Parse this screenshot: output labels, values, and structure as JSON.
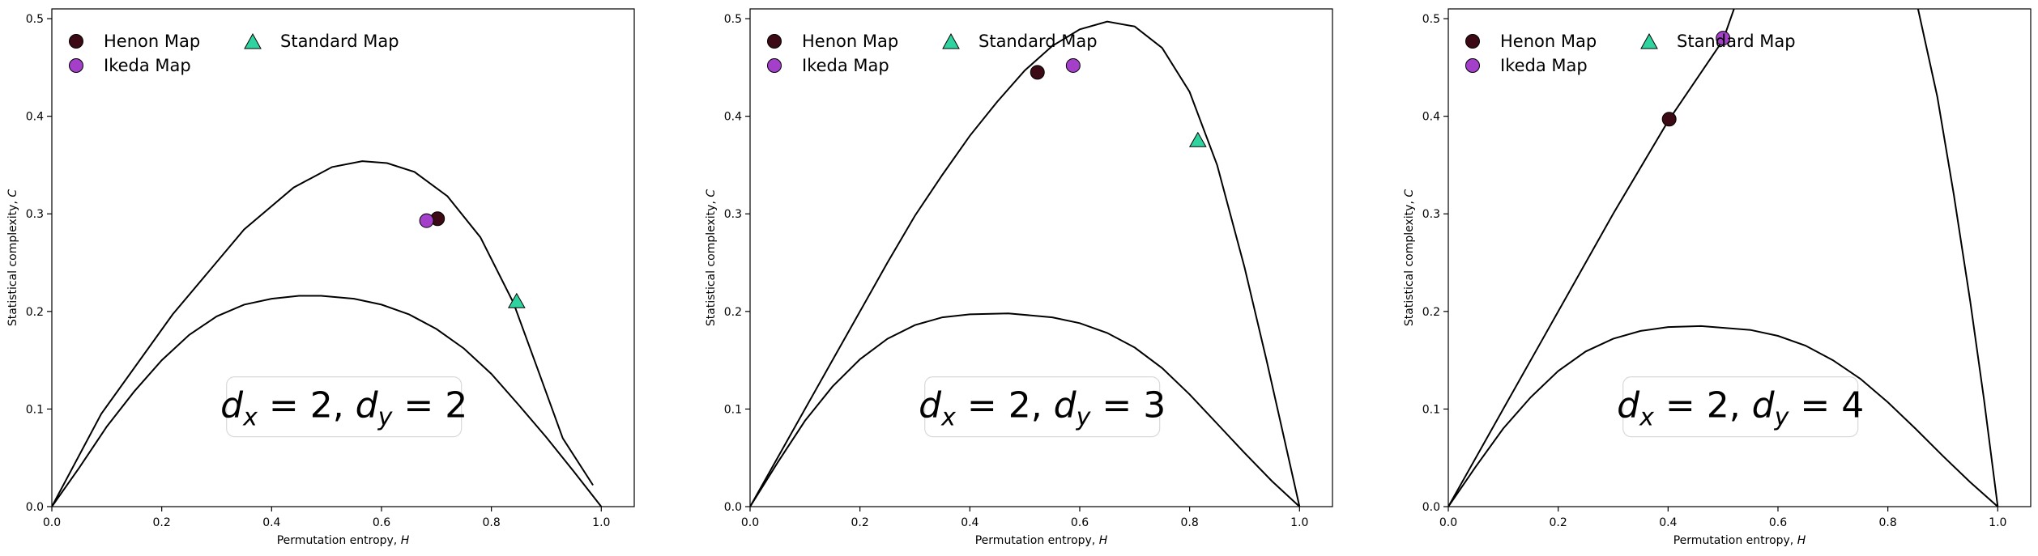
{
  "colors": {
    "henon": "#3b0a14",
    "ikeda": "#a33fc9",
    "standard": "#2fd3a0",
    "curve": "#000000"
  },
  "chart_data": [
    {
      "type": "scatter",
      "xlabel": "Permutation entropy, ",
      "xlabel_var": "H",
      "ylabel": "Statistical complexity, ",
      "ylabel_var": "C",
      "xlim": [
        0.0,
        1.06
      ],
      "ylim": [
        0.0,
        0.51
      ],
      "xticks": [
        "0.0",
        "0.2",
        "0.4",
        "0.6",
        "0.8",
        "1.0"
      ],
      "yticks": [
        "0.0",
        "0.1",
        "0.2",
        "0.3",
        "0.4",
        "0.5"
      ],
      "legend": "upper-left",
      "annotation": {
        "prefix": "d",
        "sub1": "x",
        "mid": " = 2, ",
        "sub2": "y",
        "suffix": " = 2"
      },
      "series": [
        {
          "name": "Henon Map",
          "marker": "circle",
          "points": [
            [
              0.702,
              0.295
            ]
          ]
        },
        {
          "name": "Ikeda Map",
          "marker": "circle",
          "points": [
            [
              0.682,
              0.293
            ]
          ]
        },
        {
          "name": "Standard Map",
          "marker": "triangle",
          "points": [
            [
              0.846,
              0.21
            ]
          ]
        }
      ],
      "upper_curve": [
        [
          0.0,
          0.0
        ],
        [
          0.09,
          0.095
        ],
        [
          0.22,
          0.197
        ],
        [
          0.35,
          0.284
        ],
        [
          0.44,
          0.327
        ],
        [
          0.51,
          0.348
        ],
        [
          0.565,
          0.354
        ],
        [
          0.61,
          0.352
        ],
        [
          0.66,
          0.343
        ],
        [
          0.72,
          0.318
        ],
        [
          0.78,
          0.276
        ],
        [
          0.84,
          0.209
        ],
        [
          0.89,
          0.132
        ],
        [
          0.93,
          0.07
        ],
        [
          0.985,
          0.022
        ]
      ],
      "lower_curve": [
        [
          0.0,
          0.0
        ],
        [
          0.05,
          0.04
        ],
        [
          0.1,
          0.082
        ],
        [
          0.15,
          0.118
        ],
        [
          0.2,
          0.15
        ],
        [
          0.25,
          0.176
        ],
        [
          0.3,
          0.195
        ],
        [
          0.35,
          0.207
        ],
        [
          0.4,
          0.213
        ],
        [
          0.45,
          0.216
        ],
        [
          0.49,
          0.216
        ],
        [
          0.55,
          0.213
        ],
        [
          0.6,
          0.207
        ],
        [
          0.65,
          0.197
        ],
        [
          0.7,
          0.182
        ],
        [
          0.75,
          0.162
        ],
        [
          0.8,
          0.136
        ],
        [
          0.85,
          0.104
        ],
        [
          0.9,
          0.071
        ],
        [
          0.95,
          0.036
        ],
        [
          1.0,
          0.0
        ]
      ]
    },
    {
      "type": "scatter",
      "xlabel": "Permutation entropy, ",
      "xlabel_var": "H",
      "ylabel": "Statistical complexity, ",
      "ylabel_var": "C",
      "xlim": [
        0.0,
        1.06
      ],
      "ylim": [
        0.0,
        0.51
      ],
      "xticks": [
        "0.0",
        "0.2",
        "0.4",
        "0.6",
        "0.8",
        "1.0"
      ],
      "yticks": [
        "0.0",
        "0.1",
        "0.2",
        "0.3",
        "0.4",
        "0.5"
      ],
      "legend": "upper-left",
      "annotation": {
        "prefix": "d",
        "sub1": "x",
        "mid": " = 2, ",
        "sub2": "y",
        "suffix": " = 3"
      },
      "series": [
        {
          "name": "Henon Map",
          "marker": "circle",
          "points": [
            [
              0.523,
              0.445
            ]
          ]
        },
        {
          "name": "Ikeda Map",
          "marker": "circle",
          "points": [
            [
              0.588,
              0.452
            ]
          ]
        },
        {
          "name": "Standard Map",
          "marker": "triangle",
          "points": [
            [
              0.815,
              0.375
            ]
          ]
        }
      ],
      "upper_curve": [
        [
          0.0,
          0.0
        ],
        [
          0.05,
          0.05
        ],
        [
          0.1,
          0.1
        ],
        [
          0.15,
          0.15
        ],
        [
          0.2,
          0.2
        ],
        [
          0.25,
          0.25
        ],
        [
          0.3,
          0.298
        ],
        [
          0.35,
          0.34
        ],
        [
          0.4,
          0.38
        ],
        [
          0.45,
          0.415
        ],
        [
          0.5,
          0.447
        ],
        [
          0.55,
          0.472
        ],
        [
          0.6,
          0.489
        ],
        [
          0.65,
          0.497
        ],
        [
          0.7,
          0.492
        ],
        [
          0.75,
          0.47
        ],
        [
          0.8,
          0.425
        ],
        [
          0.85,
          0.35
        ],
        [
          0.9,
          0.245
        ],
        [
          0.94,
          0.15
        ],
        [
          0.97,
          0.075
        ],
        [
          1.0,
          0.0
        ]
      ],
      "lower_curve": [
        [
          0.0,
          0.0
        ],
        [
          0.05,
          0.045
        ],
        [
          0.1,
          0.088
        ],
        [
          0.15,
          0.123
        ],
        [
          0.2,
          0.151
        ],
        [
          0.25,
          0.172
        ],
        [
          0.3,
          0.186
        ],
        [
          0.35,
          0.194
        ],
        [
          0.4,
          0.197
        ],
        [
          0.47,
          0.198
        ],
        [
          0.55,
          0.194
        ],
        [
          0.6,
          0.188
        ],
        [
          0.65,
          0.178
        ],
        [
          0.7,
          0.163
        ],
        [
          0.75,
          0.142
        ],
        [
          0.8,
          0.115
        ],
        [
          0.85,
          0.085
        ],
        [
          0.9,
          0.055
        ],
        [
          0.95,
          0.026
        ],
        [
          1.0,
          0.0
        ]
      ]
    },
    {
      "type": "scatter",
      "xlabel": "Permutation entropy, ",
      "xlabel_var": "H",
      "ylabel": "Statistical complexity, ",
      "ylabel_var": "C",
      "xlim": [
        0.0,
        1.06
      ],
      "ylim": [
        0.0,
        0.51
      ],
      "xticks": [
        "0.0",
        "0.2",
        "0.4",
        "0.6",
        "0.8",
        "1.0"
      ],
      "yticks": [
        "0.0",
        "0.1",
        "0.2",
        "0.3",
        "0.4",
        "0.5"
      ],
      "legend": "upper-left",
      "annotation": {
        "prefix": "d",
        "sub1": "x",
        "mid": " = 2, ",
        "sub2": "y",
        "suffix": " = 4"
      },
      "series": [
        {
          "name": "Henon Map",
          "marker": "circle",
          "points": [
            [
              0.402,
              0.397
            ]
          ]
        },
        {
          "name": "Ikeda Map",
          "marker": "circle",
          "points": [
            [
              0.5,
              0.48
            ]
          ]
        },
        {
          "name": "Standard Map",
          "marker": "triangle",
          "points": []
        }
      ],
      "upper_curve": [
        [
          0.0,
          0.0
        ],
        [
          0.1,
          0.1
        ],
        [
          0.2,
          0.2
        ],
        [
          0.3,
          0.3
        ],
        [
          0.4,
          0.395
        ],
        [
          0.5,
          0.478
        ],
        [
          0.52,
          0.51
        ]
      ],
      "upper_curve_2": [
        [
          0.855,
          0.51
        ],
        [
          0.89,
          0.42
        ],
        [
          0.92,
          0.32
        ],
        [
          0.95,
          0.21
        ],
        [
          0.975,
          0.11
        ],
        [
          1.0,
          0.0
        ]
      ],
      "lower_curve": [
        [
          0.0,
          0.0
        ],
        [
          0.05,
          0.041
        ],
        [
          0.1,
          0.08
        ],
        [
          0.15,
          0.112
        ],
        [
          0.2,
          0.139
        ],
        [
          0.25,
          0.159
        ],
        [
          0.3,
          0.172
        ],
        [
          0.35,
          0.18
        ],
        [
          0.4,
          0.184
        ],
        [
          0.46,
          0.185
        ],
        [
          0.55,
          0.181
        ],
        [
          0.6,
          0.175
        ],
        [
          0.65,
          0.165
        ],
        [
          0.7,
          0.15
        ],
        [
          0.75,
          0.131
        ],
        [
          0.8,
          0.107
        ],
        [
          0.85,
          0.08
        ],
        [
          0.9,
          0.052
        ],
        [
          0.95,
          0.025
        ],
        [
          1.0,
          0.0
        ]
      ]
    }
  ]
}
